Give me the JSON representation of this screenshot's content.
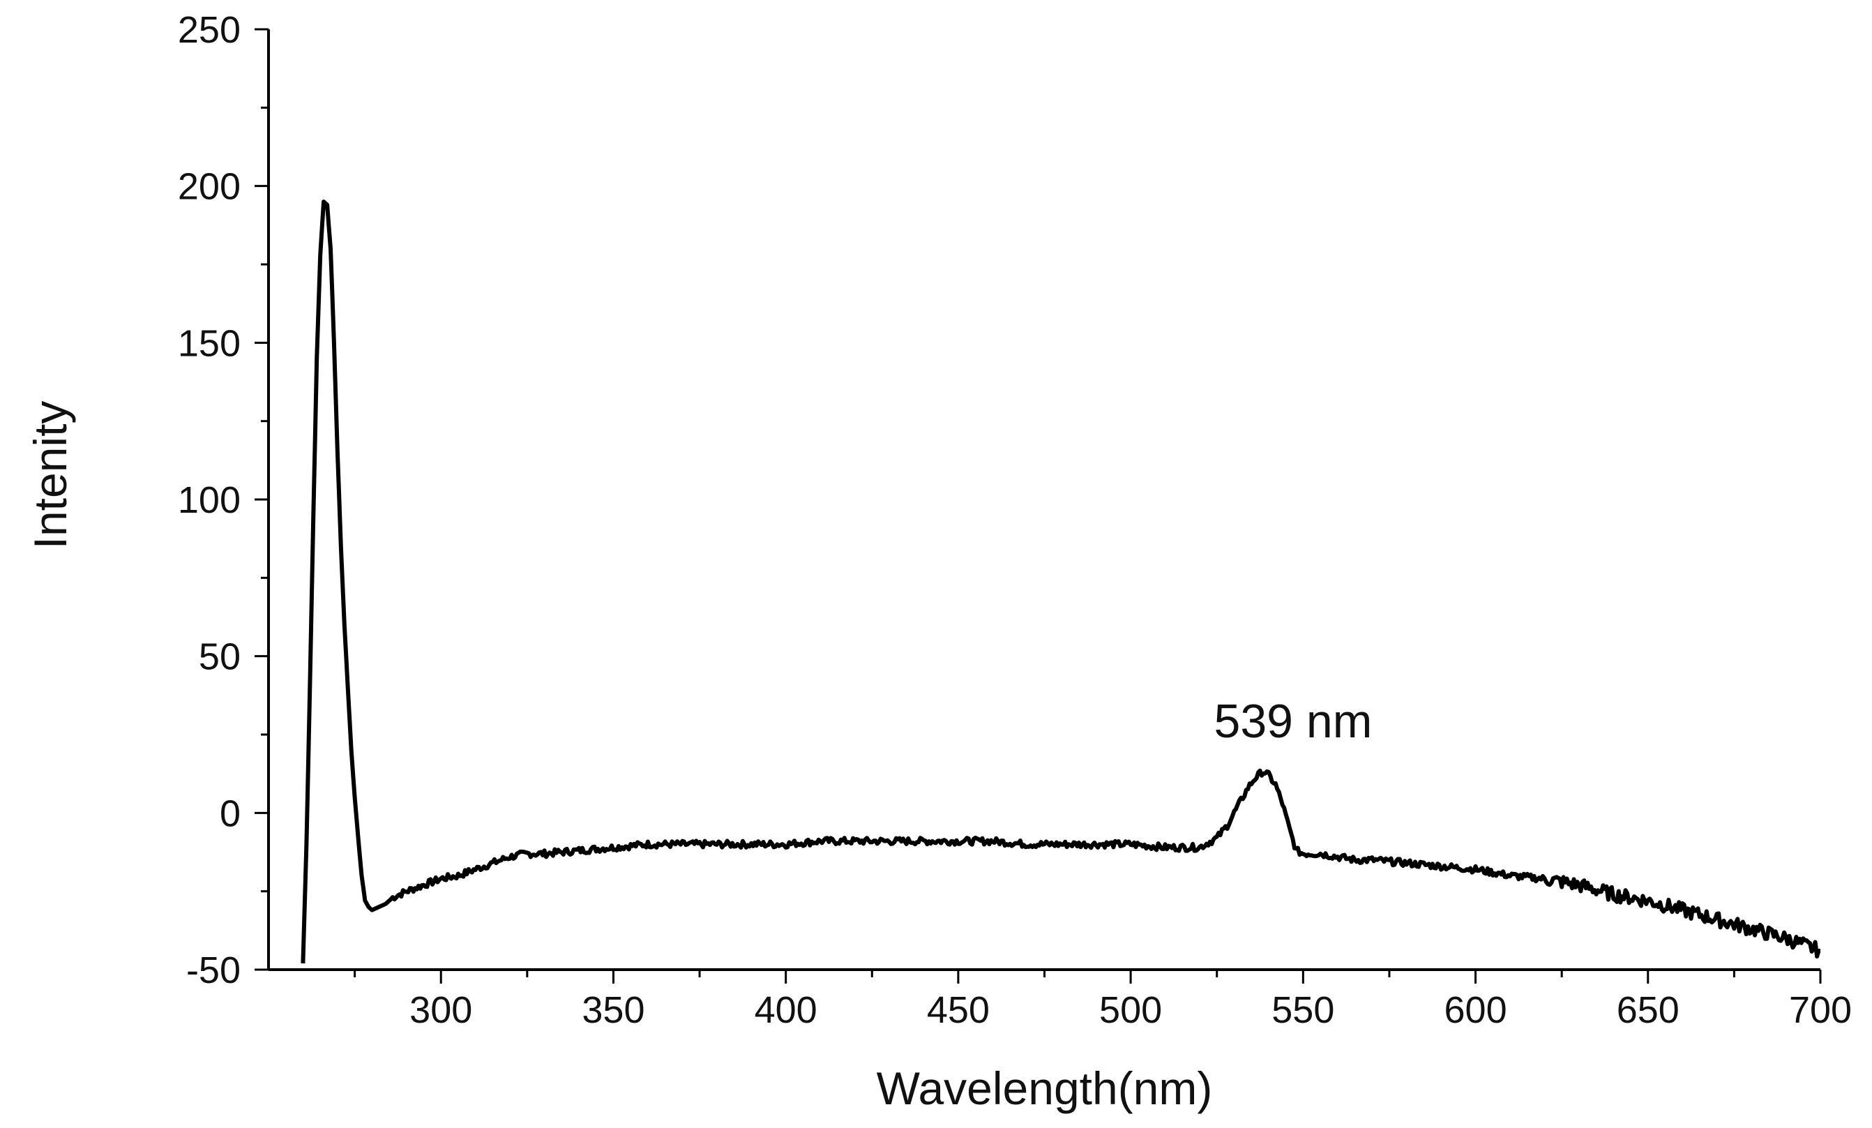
{
  "chart_data": {
    "type": "line",
    "title": "",
    "xlabel": "Wavelength(nm)",
    "ylabel": "Intenity",
    "xlim": [
      250,
      700
    ],
    "ylim": [
      -50,
      250
    ],
    "x_ticks": [
      300,
      350,
      400,
      450,
      500,
      550,
      600,
      650,
      700
    ],
    "x_tick_labels": [
      "300",
      "350",
      "400",
      "450",
      "500",
      "550",
      "600",
      "650",
      "700"
    ],
    "y_ticks": [
      -50,
      0,
      50,
      100,
      150,
      200,
      250
    ],
    "y_tick_labels": [
      "-50",
      "0",
      "50",
      "100",
      "150",
      "200",
      "250"
    ],
    "grid": false,
    "legend": "none",
    "line_color": "#000000",
    "annotations": [
      {
        "text": "539 nm",
        "x": 539,
        "y": 13
      }
    ],
    "series": [
      {
        "x": [
          260,
          261,
          262,
          263,
          264,
          265,
          266,
          267,
          268,
          269,
          270,
          271,
          272,
          273,
          274,
          275,
          276,
          277,
          278,
          279,
          280,
          282,
          284,
          286,
          290,
          295,
          300,
          305,
          310,
          315,
          320,
          325,
          330,
          340,
          350,
          360,
          370,
          380,
          390,
          400,
          410,
          420,
          430,
          440,
          450,
          460,
          470,
          480,
          490,
          500,
          510,
          520,
          525,
          528,
          531,
          534,
          536,
          538,
          539,
          540,
          542,
          544,
          546,
          548,
          550,
          552,
          555,
          560,
          565,
          570,
          580,
          590,
          600,
          610,
          620,
          630,
          640,
          650,
          660,
          670,
          680,
          690,
          695,
          700
        ],
        "y": [
          -48,
          -10,
          40,
          95,
          145,
          178,
          195,
          194,
          180,
          150,
          115,
          85,
          60,
          40,
          20,
          5,
          -8,
          -20,
          -28,
          -30,
          -31,
          -30,
          -29,
          -27,
          -25,
          -23,
          -21,
          -20,
          -18,
          -16,
          -14,
          -13,
          -13,
          -12,
          -11,
          -10,
          -10,
          -10,
          -10,
          -10,
          -9,
          -9,
          -9,
          -9,
          -9,
          -9,
          -10,
          -10,
          -10,
          -10,
          -11,
          -11,
          -8,
          -4,
          2,
          8,
          11,
          13,
          13,
          12,
          9,
          3,
          -5,
          -12,
          -13,
          -13,
          -13,
          -14,
          -15,
          -15,
          -16,
          -17,
          -18,
          -20,
          -21,
          -23,
          -26,
          -28,
          -31,
          -34,
          -37,
          -40,
          -42,
          -44
        ]
      }
    ]
  }
}
